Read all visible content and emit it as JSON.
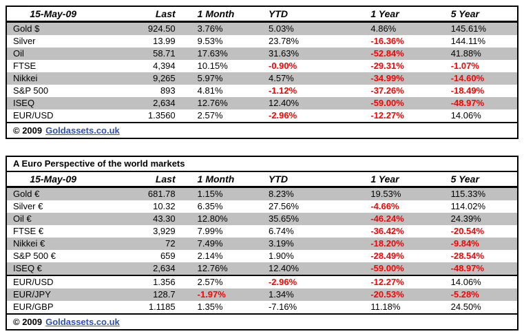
{
  "colors": {
    "negative_value": "#FF0000",
    "row_stripe": "#C0C0C0",
    "link": "#2D50B4",
    "border": "#000000"
  },
  "footer": {
    "copyright": "© 2009",
    "link_label": "Goldassets.co.uk"
  },
  "chart_data": [
    {
      "type": "table",
      "columns": [
        "15-May-09",
        "Last",
        "1 Month",
        "YTD",
        "1 Year",
        "5 Year"
      ],
      "rows": [
        {
          "label": "Gold $",
          "cells": [
            {
              "t": "924.50"
            },
            {
              "t": "3.76%"
            },
            {
              "t": "5.03%"
            },
            {
              "t": "4.86%"
            },
            {
              "t": "145.61%"
            }
          ]
        },
        {
          "label": "Silver",
          "cells": [
            {
              "t": "13.99"
            },
            {
              "t": "9.53%"
            },
            {
              "t": "23.78%"
            },
            {
              "t": "-16.36%",
              "neg": true
            },
            {
              "t": "144.11%"
            }
          ]
        },
        {
          "label": "Oil",
          "cells": [
            {
              "t": "58.71"
            },
            {
              "t": "17.63%"
            },
            {
              "t": "31.63%"
            },
            {
              "t": "-52.84%",
              "neg": true
            },
            {
              "t": "41.88%"
            }
          ]
        },
        {
          "label": "FTSE",
          "cells": [
            {
              "t": "4,394"
            },
            {
              "t": "10.15%"
            },
            {
              "t": "-0.90%",
              "neg": true
            },
            {
              "t": "-29.31%",
              "neg": true
            },
            {
              "t": "-1.07%",
              "neg": true
            }
          ]
        },
        {
          "label": "Nikkei",
          "cells": [
            {
              "t": "9,265"
            },
            {
              "t": "5.97%"
            },
            {
              "t": "4.57%"
            },
            {
              "t": "-34.99%",
              "neg": true
            },
            {
              "t": "-14.60%",
              "neg": true
            }
          ]
        },
        {
          "label": "S&P 500",
          "cells": [
            {
              "t": "893"
            },
            {
              "t": "4.81%"
            },
            {
              "t": "-1.12%",
              "neg": true
            },
            {
              "t": "-37.26%",
              "neg": true
            },
            {
              "t": "-18.49%",
              "neg": true
            }
          ]
        },
        {
          "label": "ISEQ",
          "cells": [
            {
              "t": "2,634"
            },
            {
              "t": "12.76%"
            },
            {
              "t": "12.40%"
            },
            {
              "t": "-59.00%",
              "neg": true
            },
            {
              "t": "-48.97%",
              "neg": true
            }
          ]
        },
        {
          "label": "EUR/USD",
          "cells": [
            {
              "t": "1.3560"
            },
            {
              "t": "2.57%"
            },
            {
              "t": "-2.96%",
              "neg": true
            },
            {
              "t": "-12.27%",
              "neg": true
            },
            {
              "t": "14.06%"
            }
          ]
        }
      ]
    },
    {
      "type": "table",
      "title": "A Euro Perspective of the world markets",
      "columns": [
        "15-May-09",
        "Last",
        "1 Month",
        "YTD",
        "1 Year",
        "5 Year"
      ],
      "rows": [
        {
          "label": "Gold €",
          "cells": [
            {
              "t": "681.78"
            },
            {
              "t": "1.15%"
            },
            {
              "t": "8.23%"
            },
            {
              "t": "19.53%"
            },
            {
              "t": "115.33%"
            }
          ]
        },
        {
          "label": "Silver €",
          "cells": [
            {
              "t": "10.32"
            },
            {
              "t": "6.35%"
            },
            {
              "t": "27.56%"
            },
            {
              "t": "-4.66%",
              "neg": true
            },
            {
              "t": "114.02%"
            }
          ]
        },
        {
          "label": "Oil €",
          "cells": [
            {
              "t": "43.30"
            },
            {
              "t": "12.80%"
            },
            {
              "t": "35.65%"
            },
            {
              "t": "-46.24%",
              "neg": true
            },
            {
              "t": "24.39%"
            }
          ]
        },
        {
          "label": "FTSE €",
          "cells": [
            {
              "t": "3,929"
            },
            {
              "t": "7.99%"
            },
            {
              "t": "6.74%"
            },
            {
              "t": "-36.42%",
              "neg": true
            },
            {
              "t": "-20.54%",
              "neg": true
            }
          ]
        },
        {
          "label": "Nikkei €",
          "cells": [
            {
              "t": "72"
            },
            {
              "t": "7.49%"
            },
            {
              "t": "3.19%"
            },
            {
              "t": "-18.20%",
              "neg": true
            },
            {
              "t": "-9.84%",
              "neg": true
            }
          ]
        },
        {
          "label": "S&P 500 €",
          "cells": [
            {
              "t": "659"
            },
            {
              "t": "2.14%"
            },
            {
              "t": "1.90%"
            },
            {
              "t": "-28.49%",
              "neg": true
            },
            {
              "t": "-28.54%",
              "neg": true
            }
          ]
        },
        {
          "label": "ISEQ €",
          "cells": [
            {
              "t": "2,634"
            },
            {
              "t": "12.76%"
            },
            {
              "t": "12.40%"
            },
            {
              "t": "-59.00%",
              "neg": true
            },
            {
              "t": "-48.97%",
              "neg": true
            }
          ]
        },
        {
          "label": "EUR/USD",
          "cells": [
            {
              "t": "1.356"
            },
            {
              "t": "2.57%"
            },
            {
              "t": "-2.96%",
              "neg": true
            },
            {
              "t": "-12.27%",
              "neg": true
            },
            {
              "t": "14.06%"
            }
          ]
        },
        {
          "label": "EUR/JPY",
          "cells": [
            {
              "t": "128.7"
            },
            {
              "t": "-1.97%",
              "neg": true
            },
            {
              "t": "1.34%"
            },
            {
              "t": "-20.53%",
              "neg": true
            },
            {
              "t": "-5.28%",
              "neg": true
            }
          ]
        },
        {
          "label": "EUR/GBP",
          "cells": [
            {
              "t": "1.1185"
            },
            {
              "t": "1.35%"
            },
            {
              "t": "-7.16%"
            },
            {
              "t": "11.18%"
            },
            {
              "t": "24.50%"
            }
          ]
        }
      ]
    }
  ]
}
